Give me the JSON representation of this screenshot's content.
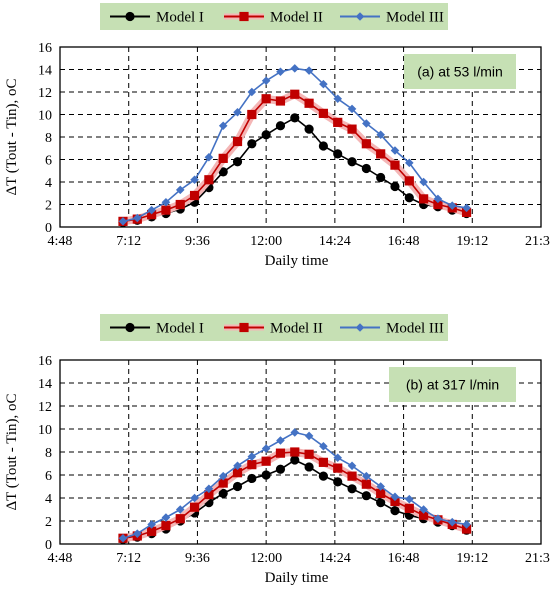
{
  "colors": {
    "model1": "#000000",
    "model2": "#c00000",
    "model2_glow": "#f4b6b6",
    "model3": "#4472c4",
    "legend_bg": "#c6e0b4",
    "annotation_bg": "#c6e0b4"
  },
  "chart_data": [
    {
      "type": "line",
      "annotation": "(a) at 53 l/min",
      "xlabel": "Daily time",
      "ylabel": "ΔT (Tout - Tin), oC",
      "x_unit": "hours of day",
      "xlim": [
        4.8,
        21.6
      ],
      "xticks": [
        4.8,
        7.2,
        9.6,
        12.0,
        14.4,
        16.8,
        19.2,
        21.6
      ],
      "xtick_labels": [
        "4:48",
        "7:12",
        "9:36",
        "12:00",
        "14:24",
        "16:48",
        "19:12",
        "21:36"
      ],
      "ylim": [
        0,
        16
      ],
      "yticks": [
        0,
        2,
        4,
        6,
        8,
        10,
        12,
        14,
        16
      ],
      "grid": true,
      "legend_position": "top",
      "x": [
        7.0,
        7.5,
        8.0,
        8.5,
        9.0,
        9.5,
        10.0,
        10.5,
        11.0,
        11.5,
        12.0,
        12.5,
        13.0,
        13.5,
        14.0,
        14.5,
        15.0,
        15.5,
        16.0,
        16.5,
        17.0,
        17.5,
        18.0,
        18.5,
        19.0
      ],
      "series": [
        {
          "name": "Model I",
          "marker": "circle",
          "values": [
            0.4,
            0.6,
            0.9,
            1.2,
            1.6,
            2.2,
            3.5,
            4.9,
            5.8,
            7.4,
            8.2,
            9.0,
            9.7,
            8.7,
            7.2,
            6.5,
            5.8,
            5.2,
            4.4,
            3.6,
            2.6,
            2.0,
            1.8,
            1.5,
            1.2
          ]
        },
        {
          "name": "Model II",
          "marker": "square",
          "values": [
            0.5,
            0.7,
            1.1,
            1.5,
            2.0,
            2.8,
            4.2,
            6.1,
            7.6,
            10.0,
            11.4,
            11.2,
            11.8,
            11.0,
            10.1,
            9.3,
            8.7,
            7.4,
            6.5,
            5.5,
            4.1,
            2.5,
            2.0,
            1.7,
            1.3
          ]
        },
        {
          "name": "Model III",
          "marker": "diamond",
          "values": [
            0.5,
            0.8,
            1.5,
            2.2,
            3.3,
            4.2,
            6.2,
            9.0,
            10.2,
            12.0,
            13.0,
            13.8,
            14.1,
            13.9,
            12.7,
            11.4,
            10.5,
            9.2,
            8.2,
            6.8,
            5.7,
            4.0,
            2.5,
            1.9,
            1.7
          ]
        }
      ]
    },
    {
      "type": "line",
      "annotation": "(b) at 317 l/min",
      "xlabel": "Daily time",
      "ylabel": "ΔT (Tout - Tin), oC",
      "x_unit": "hours of day",
      "xlim": [
        4.8,
        21.6
      ],
      "xticks": [
        4.8,
        7.2,
        9.6,
        12.0,
        14.4,
        16.8,
        19.2,
        21.6
      ],
      "xtick_labels": [
        "4:48",
        "7:12",
        "9:36",
        "12:00",
        "14:24",
        "16:48",
        "19:12",
        "21:36"
      ],
      "ylim": [
        0,
        16
      ],
      "yticks": [
        0,
        2,
        4,
        6,
        8,
        10,
        12,
        14,
        16
      ],
      "grid": true,
      "legend_position": "top",
      "x": [
        7.0,
        7.5,
        8.0,
        8.5,
        9.0,
        9.5,
        10.0,
        10.5,
        11.0,
        11.5,
        12.0,
        12.5,
        13.0,
        13.5,
        14.0,
        14.5,
        15.0,
        15.5,
        16.0,
        16.5,
        17.0,
        17.5,
        18.0,
        18.5,
        19.0
      ],
      "series": [
        {
          "name": "Model I",
          "marker": "circle",
          "values": [
            0.4,
            0.6,
            0.9,
            1.3,
            2.0,
            2.7,
            3.6,
            4.4,
            5.0,
            5.7,
            6.0,
            6.5,
            7.3,
            6.7,
            5.9,
            5.4,
            4.8,
            4.2,
            3.6,
            2.9,
            2.5,
            2.2,
            1.9,
            1.6,
            1.2
          ]
        },
        {
          "name": "Model II",
          "marker": "square",
          "values": [
            0.5,
            0.7,
            1.1,
            1.6,
            2.2,
            3.2,
            4.3,
            5.3,
            6.2,
            6.9,
            7.2,
            7.9,
            8.0,
            7.8,
            7.1,
            6.6,
            5.9,
            5.2,
            4.4,
            3.7,
            3.1,
            2.5,
            2.1,
            1.7,
            1.3
          ]
        },
        {
          "name": "Model III",
          "marker": "diamond",
          "values": [
            0.5,
            0.9,
            1.7,
            2.3,
            3.0,
            4.0,
            4.8,
            5.9,
            6.8,
            7.6,
            8.3,
            9.0,
            9.7,
            9.4,
            8.5,
            7.5,
            6.8,
            5.9,
            5.0,
            4.1,
            3.9,
            3.0,
            2.2,
            1.9,
            1.7
          ]
        }
      ]
    }
  ]
}
